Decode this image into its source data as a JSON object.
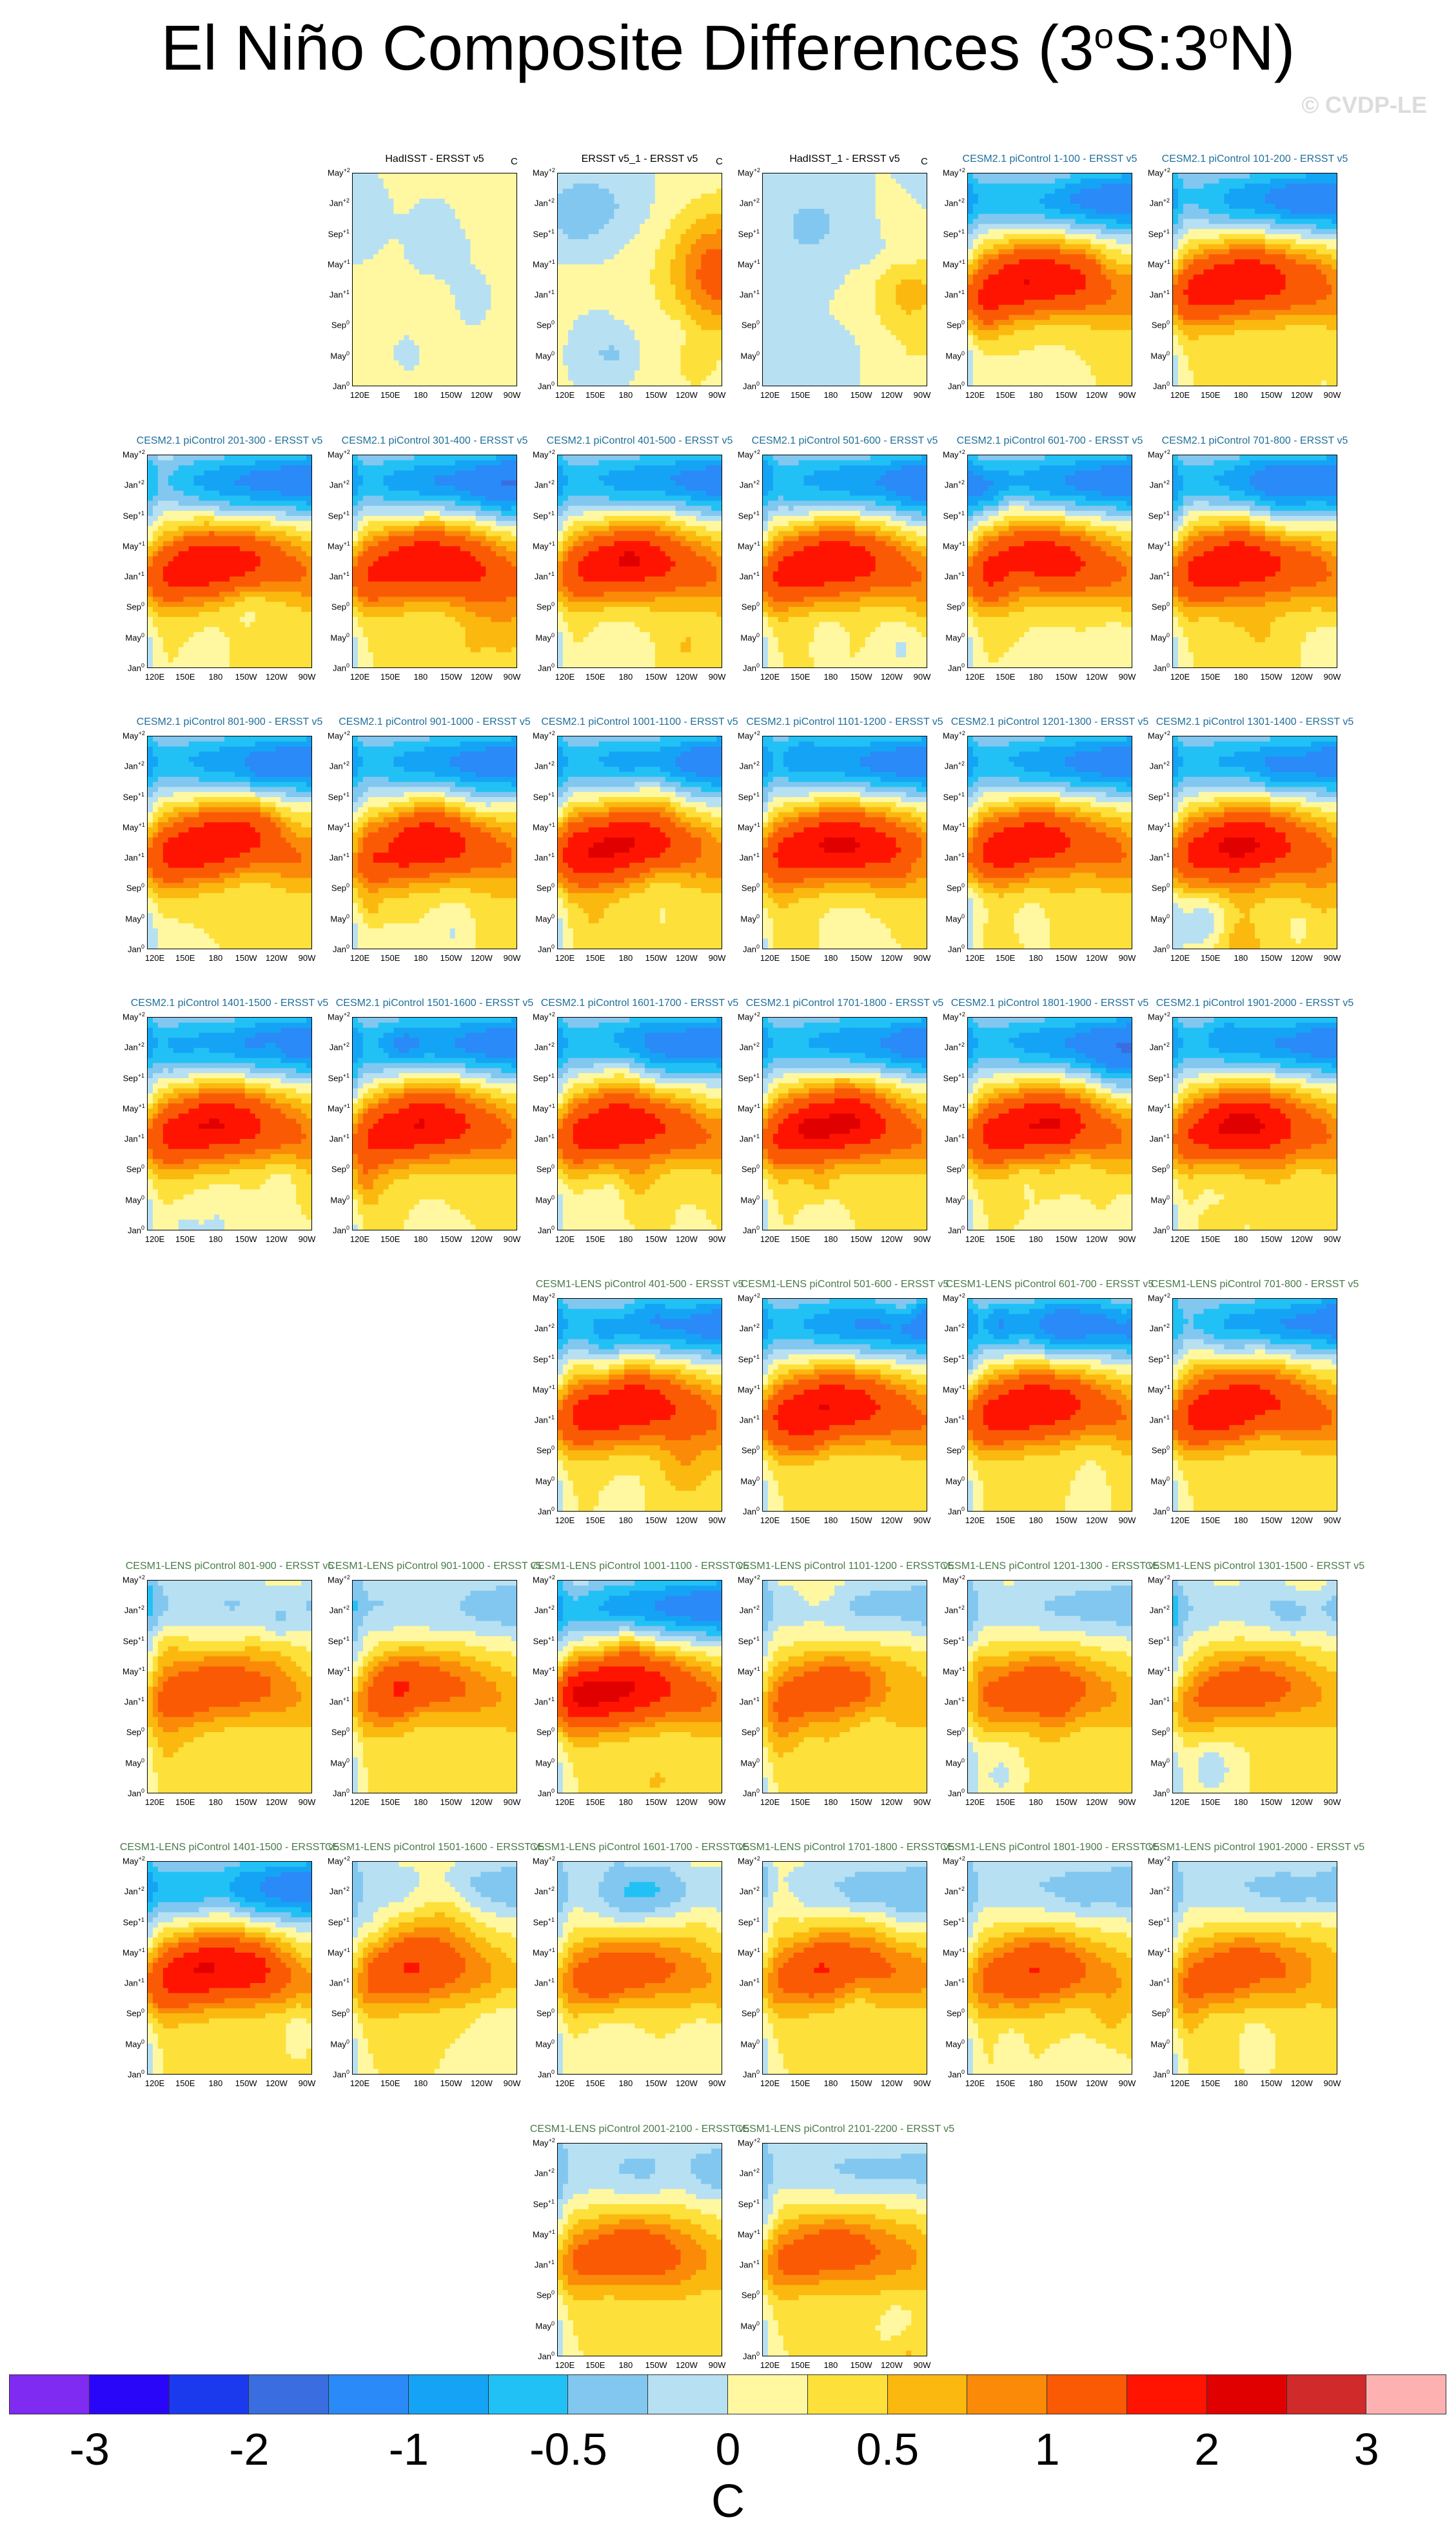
{
  "figure": {
    "title_main": "El Niño Composite Differences (3",
    "title_deg1": "o",
    "title_mid": "S:3",
    "title_deg2": "o",
    "title_end": "N)",
    "credit": "© CVDP-LE",
    "units": "C"
  },
  "colorbar": {
    "colors": [
      "#7f2bf1",
      "#2a06f8",
      "#1c3aed",
      "#3a6ee0",
      "#2a8af7",
      "#15a4f5",
      "#22c1f5",
      "#82c7ef",
      "#b7e0f2",
      "#fff8a1",
      "#fde03a",
      "#fbb80e",
      "#fb8a08",
      "#fb5a05",
      "#fe1400",
      "#e00000",
      "#d12a2a",
      "#fdb1b1"
    ],
    "labels": [
      "-3",
      "-2",
      "-1",
      "-0.5",
      "0",
      "0.5",
      "1",
      "2",
      "3"
    ]
  },
  "axes": {
    "y_ticks": [
      "May+2",
      "Jan+2",
      "Sep+1",
      "May+1",
      "Jan+1",
      "Sep0",
      "May0",
      "Jan0"
    ],
    "y_ticks_display": [
      {
        "base": "May",
        "sup": "+2"
      },
      {
        "base": "Jan",
        "sup": "+2"
      },
      {
        "base": "Sep",
        "sup": "+1"
      },
      {
        "base": "May",
        "sup": "+1"
      },
      {
        "base": "Jan",
        "sup": "+1"
      },
      {
        "base": "Sep",
        "sup": "0"
      },
      {
        "base": "May",
        "sup": "0"
      },
      {
        "base": "Jan",
        "sup": "0"
      }
    ],
    "x_ticks": [
      "120E",
      "150E",
      "180",
      "150W",
      "120W",
      "90W"
    ]
  },
  "chart_data": {
    "type": "heatmap",
    "title": "El Niño Composite Differences (3°S:3°N)",
    "colorbar_units": "C",
    "colorbar_levels": [
      -3,
      -2.5,
      -2,
      -1.5,
      -1,
      -0.75,
      -0.5,
      -0.25,
      0,
      0.25,
      0.5,
      0.75,
      1,
      1.5,
      2,
      2.5,
      3
    ],
    "x_axis": [
      "120E",
      "150E",
      "180",
      "150W",
      "120W",
      "90W"
    ],
    "y_axis": [
      "Jan0",
      "May0",
      "Sep0",
      "Jan+1",
      "May+1",
      "Sep+1",
      "Jan+2",
      "May+2"
    ],
    "panels": [
      {
        "label": "HadISST - ERSST v5",
        "group": "obs",
        "unit": "C",
        "pattern": "weak"
      },
      {
        "label": "ERSST v5_1 - ERSST v5",
        "group": "obs",
        "unit": "C",
        "pattern": "east"
      },
      {
        "label": "HadISST_1 - ERSST v5",
        "group": "obs",
        "unit": "C",
        "pattern": "mixed"
      },
      {
        "label": "CESM2.1 piControl 1-100 - ERSST v5",
        "group": "cesm2",
        "pattern": "strong"
      },
      {
        "label": "CESM2.1 piControl 101-200 - ERSST v5",
        "group": "cesm2",
        "pattern": "strong"
      },
      {
        "label": "CESM2.1 piControl 201-300 - ERSST v5",
        "group": "cesm2",
        "pattern": "strong"
      },
      {
        "label": "CESM2.1 piControl 301-400 - ERSST v5",
        "group": "cesm2",
        "pattern": "strong"
      },
      {
        "label": "CESM2.1 piControl 401-500 - ERSST v5",
        "group": "cesm2",
        "pattern": "strong"
      },
      {
        "label": "CESM2.1 piControl 501-600 - ERSST v5",
        "group": "cesm2",
        "pattern": "strong"
      },
      {
        "label": "CESM2.1 piControl 601-700 - ERSST v5",
        "group": "cesm2",
        "pattern": "strong"
      },
      {
        "label": "CESM2.1 piControl 701-800 - ERSST v5",
        "group": "cesm2",
        "pattern": "strong"
      },
      {
        "label": "CESM2.1 piControl 801-900 - ERSST v5",
        "group": "cesm2",
        "pattern": "strong"
      },
      {
        "label": "CESM2.1 piControl 901-1000 - ERSST v5",
        "group": "cesm2",
        "pattern": "strong"
      },
      {
        "label": "CESM2.1 piControl 1001-1100 - ERSST v5",
        "group": "cesm2",
        "pattern": "strong"
      },
      {
        "label": "CESM2.1 piControl 1101-1200 - ERSST v5",
        "group": "cesm2",
        "pattern": "strong"
      },
      {
        "label": "CESM2.1 piControl 1201-1300 - ERSST v5",
        "group": "cesm2",
        "pattern": "strong"
      },
      {
        "label": "CESM2.1 piControl 1301-1400 - ERSST v5",
        "group": "cesm2",
        "pattern": "strong"
      },
      {
        "label": "CESM2.1 piControl 1401-1500 - ERSST v5",
        "group": "cesm2",
        "pattern": "strong"
      },
      {
        "label": "CESM2.1 piControl 1501-1600 - ERSST v5",
        "group": "cesm2",
        "pattern": "strong"
      },
      {
        "label": "CESM2.1 piControl 1601-1700 - ERSST v5",
        "group": "cesm2",
        "pattern": "strong"
      },
      {
        "label": "CESM2.1 piControl 1701-1800 - ERSST v5",
        "group": "cesm2",
        "pattern": "strong"
      },
      {
        "label": "CESM2.1 piControl 1801-1900 - ERSST v5",
        "group": "cesm2",
        "pattern": "strong"
      },
      {
        "label": "CESM2.1 piControl 1901-2000 - ERSST v5",
        "group": "cesm2",
        "pattern": "strong"
      },
      {
        "label": "CESM1-LENS piControl 401-500 - ERSST v5",
        "group": "lens",
        "pattern": "strong"
      },
      {
        "label": "CESM1-LENS piControl 501-600 - ERSST v5",
        "group": "lens",
        "pattern": "strong"
      },
      {
        "label": "CESM1-LENS piControl 601-700 - ERSST v5",
        "group": "lens",
        "pattern": "strong"
      },
      {
        "label": "CESM1-LENS piControl 701-800 - ERSST v5",
        "group": "lens",
        "pattern": "strong"
      },
      {
        "label": "CESM1-LENS piControl 801-900 - ERSST v5",
        "group": "lens",
        "pattern": "moderate"
      },
      {
        "label": "CESM1-LENS piControl 901-1000 - ERSST v5",
        "group": "lens",
        "pattern": "moderate"
      },
      {
        "label": "CESM1-LENS piControl 1001-1100 - ERSST v5",
        "group": "lens",
        "pattern": "strong"
      },
      {
        "label": "CESM1-LENS piControl 1101-1200 - ERSST v5",
        "group": "lens",
        "pattern": "moderate"
      },
      {
        "label": "CESM1-LENS piControl 1201-1300 - ERSST v5",
        "group": "lens",
        "pattern": "moderate"
      },
      {
        "label": "CESM1-LENS piControl 1301-1500 - ERSST v5",
        "group": "lens",
        "pattern": "moderate"
      },
      {
        "label": "CESM1-LENS piControl 1401-1500 - ERSST v5",
        "group": "lens",
        "pattern": "strong"
      },
      {
        "label": "CESM1-LENS piControl 1501-1600 - ERSST v5",
        "group": "lens",
        "pattern": "moderate"
      },
      {
        "label": "CESM1-LENS piControl 1601-1700 - ERSST v5",
        "group": "lens",
        "pattern": "moderate"
      },
      {
        "label": "CESM1-LENS piControl 1701-1800 - ERSST v5",
        "group": "lens",
        "pattern": "moderate"
      },
      {
        "label": "CESM1-LENS piControl 1801-1900 - ERSST v5",
        "group": "lens",
        "pattern": "moderate"
      },
      {
        "label": "CESM1-LENS piControl 1901-2000 - ERSST v5",
        "group": "lens",
        "pattern": "moderate"
      },
      {
        "label": "CESM1-LENS piControl 2001-2100 - ERSST v5",
        "group": "lens",
        "pattern": "moderate"
      },
      {
        "label": "CESM1-LENS piControl 2101-2200 - ERSST v5",
        "group": "lens",
        "pattern": "moderate"
      }
    ]
  }
}
